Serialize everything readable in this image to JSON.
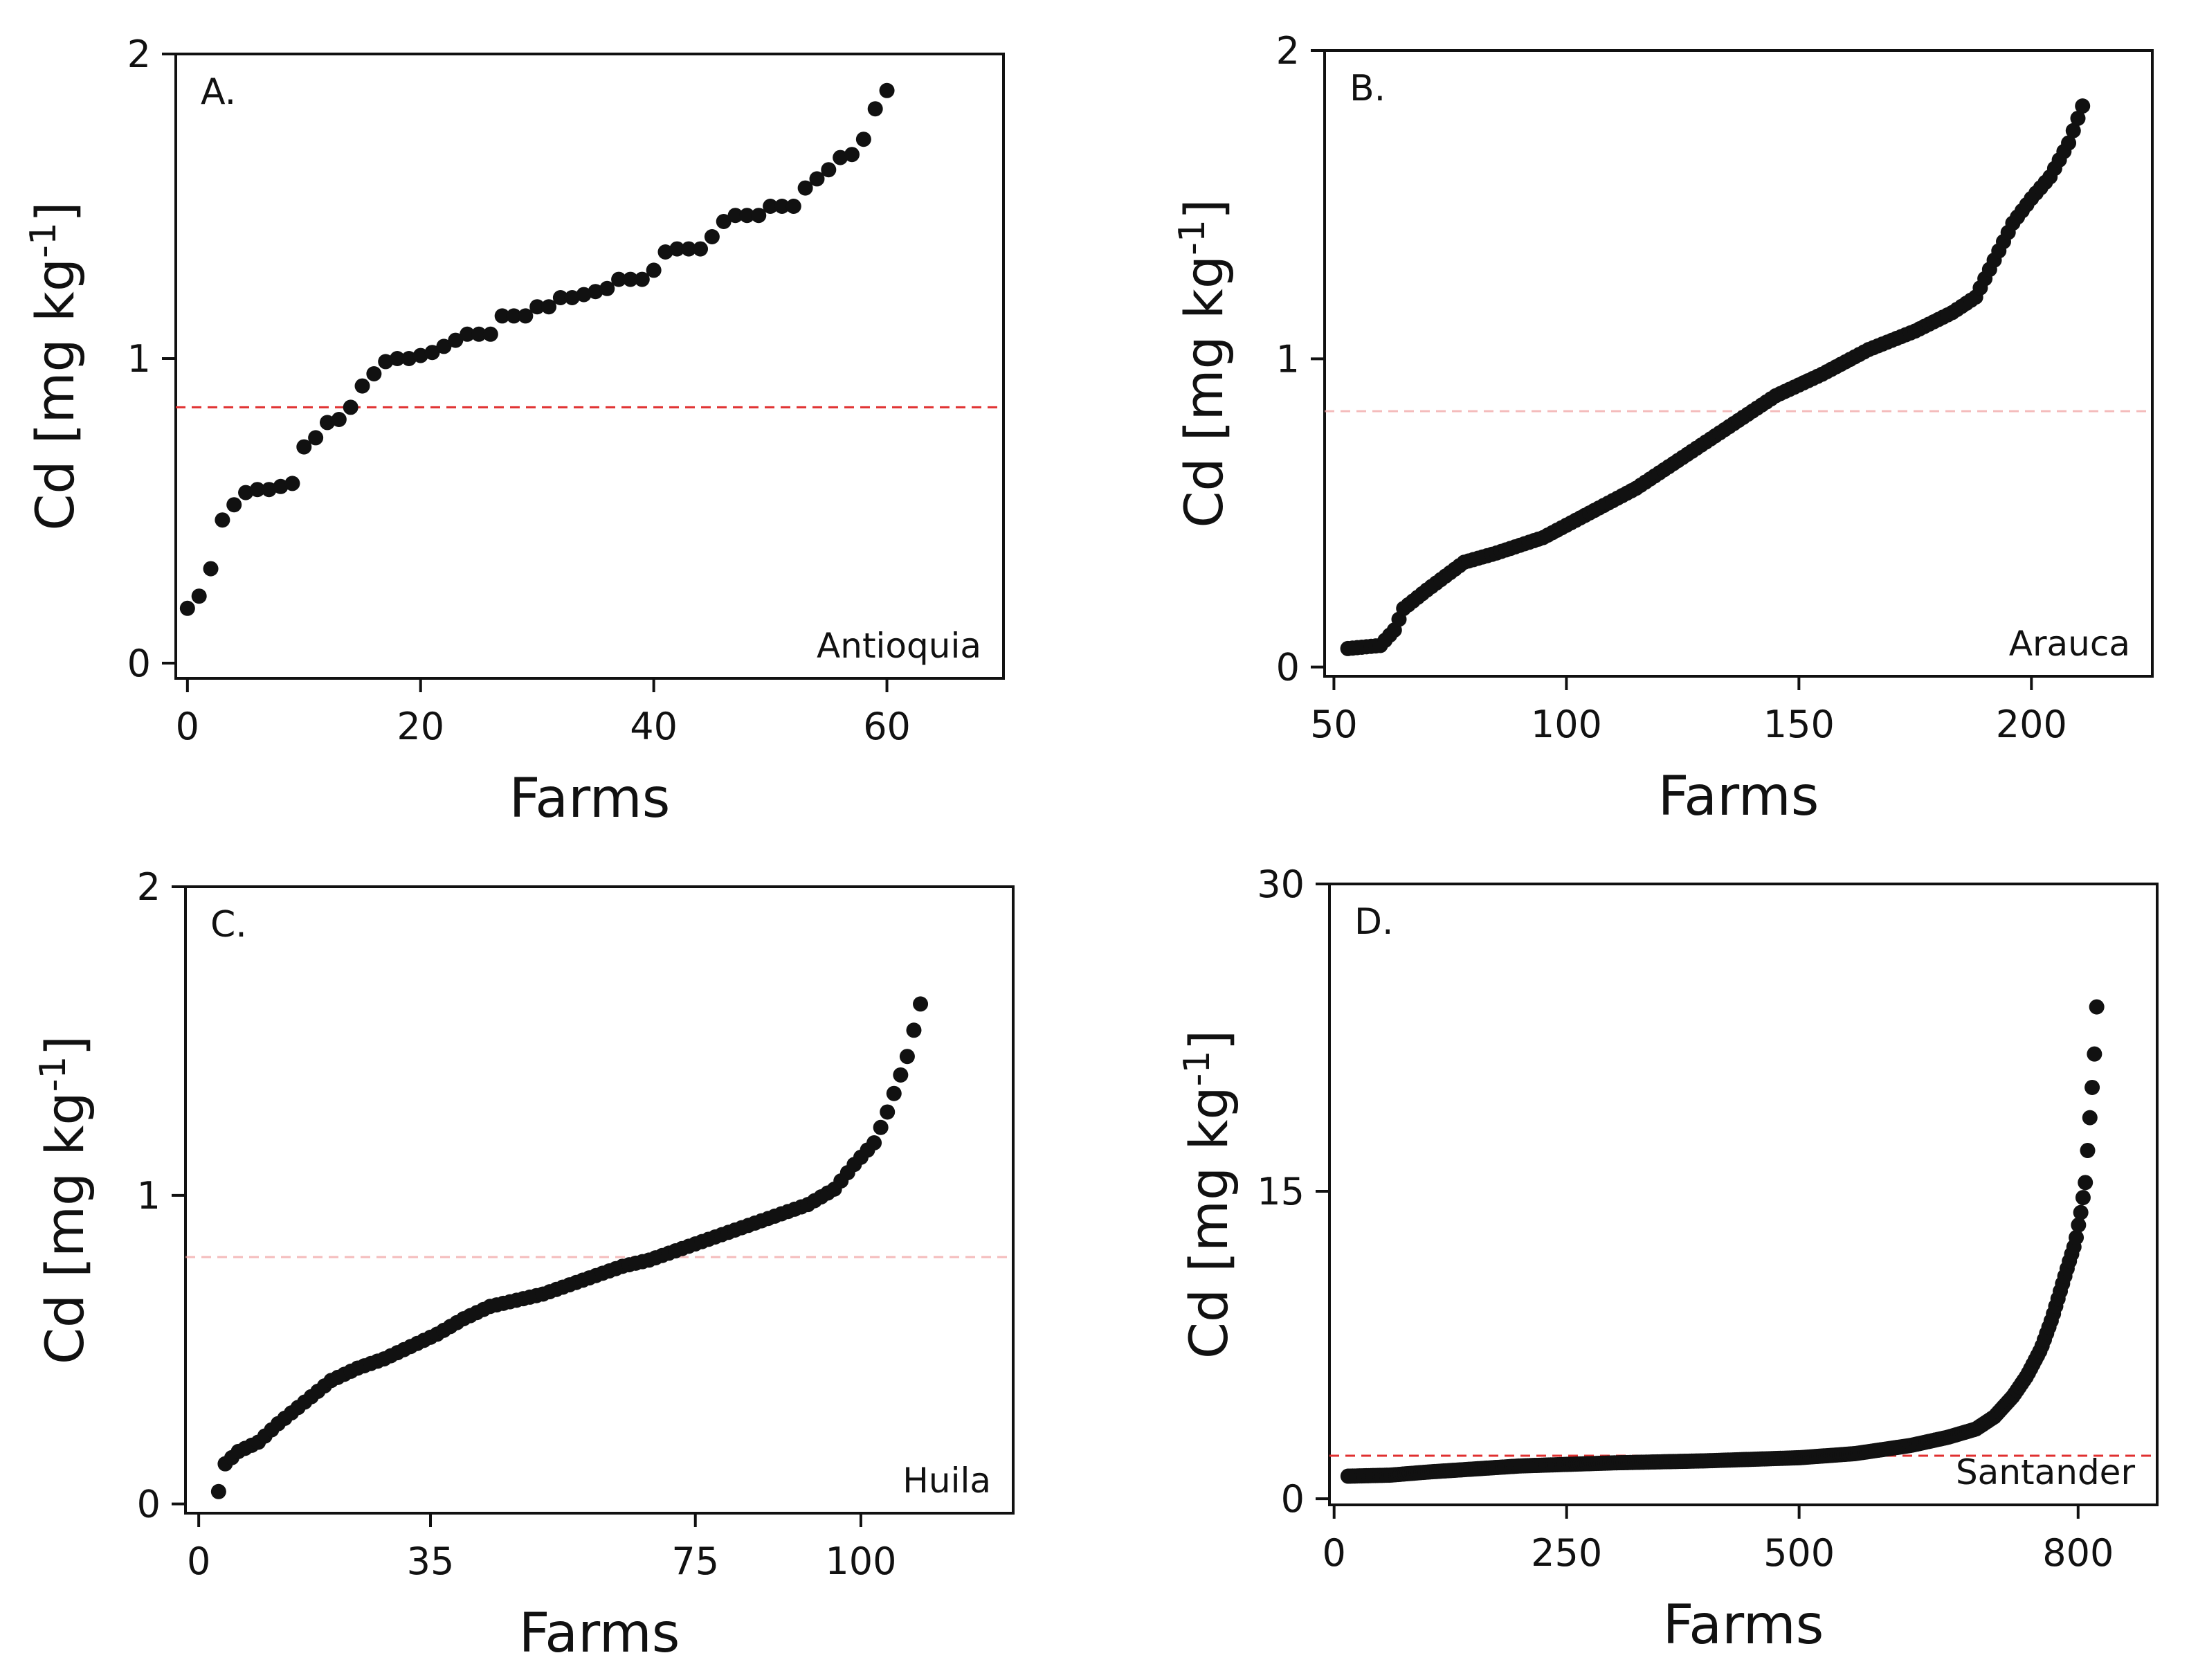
{
  "chart_data": [
    {
      "id": "A",
      "type": "scatter",
      "panel_label": "A.",
      "region": "Antioquia",
      "xlabel": "Farms",
      "ylabel": "Cd [mg kg",
      "ylabel_sup": "-1",
      "ylabel_close": "]",
      "xlim": [
        -1,
        70
      ],
      "ylim": [
        -0.05,
        2.0
      ],
      "xticks": [
        0,
        20,
        40,
        60
      ],
      "xtick_labels": [
        "0",
        "20",
        "40",
        "60"
      ],
      "yticks": [
        0,
        1,
        2
      ],
      "ytick_labels": [
        "0",
        "1",
        "2"
      ],
      "threshold": 0.84,
      "threshold_color": "#e03030",
      "threshold_opacity": 1.0,
      "point_color": "#111111",
      "x": [
        0,
        1,
        2,
        3,
        4,
        5,
        6,
        7,
        8,
        9,
        10,
        11,
        12,
        13,
        14,
        15,
        16,
        17,
        18,
        19,
        20,
        21,
        22,
        23,
        24,
        25,
        26,
        27,
        28,
        29,
        30,
        31,
        32,
        33,
        34,
        35,
        36,
        37,
        38,
        39,
        40,
        41,
        42,
        43,
        44,
        45,
        46,
        47,
        48,
        49,
        50,
        51,
        52,
        53,
        54,
        55,
        56,
        57,
        58,
        59,
        60
      ],
      "y": [
        0.18,
        0.22,
        0.31,
        0.47,
        0.52,
        0.56,
        0.57,
        0.57,
        0.58,
        0.59,
        0.71,
        0.74,
        0.79,
        0.8,
        0.84,
        0.91,
        0.95,
        0.99,
        1.0,
        1.0,
        1.01,
        1.02,
        1.04,
        1.06,
        1.08,
        1.08,
        1.08,
        1.14,
        1.14,
        1.14,
        1.17,
        1.17,
        1.2,
        1.2,
        1.21,
        1.22,
        1.23,
        1.26,
        1.26,
        1.26,
        1.29,
        1.35,
        1.36,
        1.36,
        1.36,
        1.4,
        1.45,
        1.47,
        1.47,
        1.47,
        1.5,
        1.5,
        1.5,
        1.56,
        1.59,
        1.62,
        1.66,
        1.67,
        1.72,
        1.82,
        1.88
      ]
    },
    {
      "id": "B",
      "type": "scatter",
      "panel_label": "B.",
      "region": "Arauca",
      "xlabel": "Farms",
      "ylabel": "Cd [mg kg",
      "ylabel_sup": "-1",
      "ylabel_close": "]",
      "xlim": [
        48,
        226
      ],
      "ylim": [
        -0.03,
        2.0
      ],
      "xticks": [
        50,
        100,
        150,
        200
      ],
      "xtick_labels": [
        "50",
        "100",
        "150",
        "200"
      ],
      "yticks": [
        0,
        1,
        2
      ],
      "ytick_labels": [
        "0",
        "1",
        "2"
      ],
      "threshold": 0.83,
      "threshold_color": "#f0a0a0",
      "threshold_opacity": 0.7,
      "point_color": "#111111",
      "curve_x": [
        53,
        60,
        63,
        65,
        70,
        78,
        85,
        95,
        105,
        115,
        125,
        135,
        145,
        155,
        165,
        175,
        183,
        188,
        192,
        196,
        200,
        204,
        208,
        211
      ],
      "curve_y": [
        0.06,
        0.07,
        0.12,
        0.19,
        0.25,
        0.34,
        0.37,
        0.42,
        0.5,
        0.58,
        0.68,
        0.78,
        0.88,
        0.95,
        1.03,
        1.09,
        1.15,
        1.2,
        1.32,
        1.44,
        1.52,
        1.59,
        1.7,
        1.82
      ],
      "n_points": 159
    },
    {
      "id": "C",
      "type": "scatter",
      "panel_label": "C.",
      "region": "Huila",
      "xlabel": "Farms",
      "ylabel": "Cd [mg kg",
      "ylabel_sup": "-1",
      "ylabel_close": "]",
      "xlim": [
        -2,
        123
      ],
      "ylim": [
        -0.03,
        2.0
      ],
      "xticks": [
        0,
        35,
        75,
        100
      ],
      "xtick_labels": [
        "0",
        "35",
        "75",
        "100"
      ],
      "yticks": [
        0,
        1,
        2
      ],
      "ytick_labels": [
        "0",
        "1",
        "2"
      ],
      "threshold": 0.8,
      "threshold_color": "#f0a0a0",
      "threshold_opacity": 0.7,
      "point_color": "#111111",
      "curve_x": [
        3,
        4,
        6,
        9,
        12,
        16,
        20,
        24,
        28,
        32,
        36,
        40,
        44,
        48,
        52,
        56,
        60,
        64,
        68,
        72,
        76,
        80,
        84,
        88,
        92,
        96,
        99,
        102,
        104,
        107,
        109
      ],
      "curve_y": [
        0.04,
        0.13,
        0.17,
        0.2,
        0.26,
        0.33,
        0.4,
        0.44,
        0.47,
        0.51,
        0.55,
        0.6,
        0.64,
        0.66,
        0.68,
        0.71,
        0.74,
        0.77,
        0.79,
        0.82,
        0.85,
        0.88,
        0.91,
        0.94,
        0.97,
        1.02,
        1.1,
        1.17,
        1.27,
        1.45,
        1.62
      ],
      "n_points": 107
    },
    {
      "id": "D",
      "type": "scatter",
      "panel_label": "D.",
      "region": "Santander",
      "xlabel": "Farms",
      "ylabel": "Cd [mg kg",
      "ylabel_sup": "-1",
      "ylabel_close": "]",
      "xlim": [
        -5,
        885
      ],
      "ylim": [
        -0.3,
        30
      ],
      "xticks": [
        0,
        250,
        500,
        800
      ],
      "xtick_labels": [
        "0",
        "250",
        "500",
        "800"
      ],
      "yticks": [
        0,
        15,
        30
      ],
      "ytick_labels": [
        "0",
        "15",
        "30"
      ],
      "threshold": 2.1,
      "threshold_color": "#e03030",
      "threshold_opacity": 1.0,
      "point_color": "#111111",
      "curve_x": [
        15,
        60,
        100,
        200,
        300,
        400,
        500,
        560,
        620,
        660,
        690,
        710,
        730,
        745,
        760,
        772,
        782,
        790,
        797,
        803,
        808,
        812,
        815,
        818,
        820
      ],
      "curve_y": [
        1.1,
        1.15,
        1.3,
        1.6,
        1.75,
        1.85,
        2.0,
        2.2,
        2.6,
        3.0,
        3.4,
        4.0,
        5.0,
        6.0,
        7.3,
        8.8,
        10.3,
        11.5,
        12.5,
        14.0,
        15.5,
        18.2,
        20.0,
        22.0,
        24.0
      ],
      "n_points": 330
    }
  ]
}
